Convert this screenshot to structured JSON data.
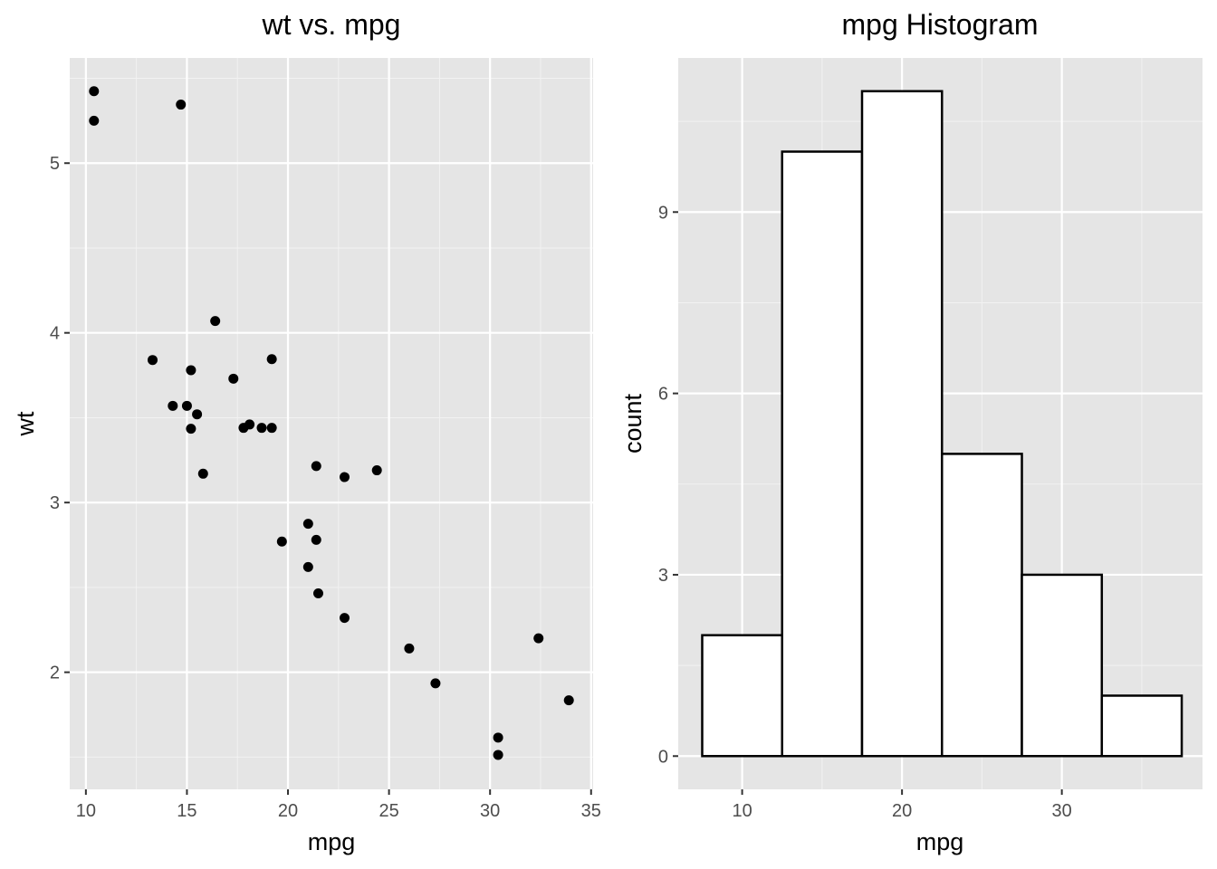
{
  "chart_data": [
    {
      "type": "scatter",
      "title": "wt vs. mpg",
      "xlabel": "mpg",
      "ylabel": "wt",
      "xlim": [
        9.2,
        35.1
      ],
      "ylim": [
        1.31,
        5.62
      ],
      "xticks": [
        10,
        15,
        20,
        25,
        30,
        35
      ],
      "yticks": [
        2,
        3,
        4,
        5
      ],
      "grid": true,
      "point_color": "#000000",
      "panel_background": "#e5e5e5",
      "points": [
        {
          "x": 21.0,
          "y": 2.62
        },
        {
          "x": 21.0,
          "y": 2.875
        },
        {
          "x": 22.8,
          "y": 2.32
        },
        {
          "x": 21.4,
          "y": 3.215
        },
        {
          "x": 18.7,
          "y": 3.44
        },
        {
          "x": 18.1,
          "y": 3.46
        },
        {
          "x": 14.3,
          "y": 3.57
        },
        {
          "x": 24.4,
          "y": 3.19
        },
        {
          "x": 22.8,
          "y": 3.15
        },
        {
          "x": 19.2,
          "y": 3.44
        },
        {
          "x": 17.8,
          "y": 3.44
        },
        {
          "x": 16.4,
          "y": 4.07
        },
        {
          "x": 17.3,
          "y": 3.73
        },
        {
          "x": 15.2,
          "y": 3.78
        },
        {
          "x": 10.4,
          "y": 5.25
        },
        {
          "x": 10.4,
          "y": 5.424
        },
        {
          "x": 14.7,
          "y": 5.345
        },
        {
          "x": 32.4,
          "y": 2.2
        },
        {
          "x": 30.4,
          "y": 1.615
        },
        {
          "x": 33.9,
          "y": 1.835
        },
        {
          "x": 21.5,
          "y": 2.465
        },
        {
          "x": 15.5,
          "y": 3.52
        },
        {
          "x": 15.2,
          "y": 3.435
        },
        {
          "x": 13.3,
          "y": 3.84
        },
        {
          "x": 19.2,
          "y": 3.845
        },
        {
          "x": 27.3,
          "y": 1.935
        },
        {
          "x": 26.0,
          "y": 2.14
        },
        {
          "x": 30.4,
          "y": 1.513
        },
        {
          "x": 15.8,
          "y": 3.17
        },
        {
          "x": 19.7,
          "y": 2.77
        },
        {
          "x": 15.0,
          "y": 3.57
        },
        {
          "x": 21.4,
          "y": 2.78
        }
      ]
    },
    {
      "type": "bar",
      "subtype": "histogram",
      "title": "mpg Histogram",
      "xlabel": "mpg",
      "ylabel": "count",
      "xlim": [
        6.0,
        38.8
      ],
      "ylim": [
        -0.55,
        11.55
      ],
      "xticks": [
        10,
        20,
        30
      ],
      "yticks": [
        0,
        3,
        6,
        9
      ],
      "grid": true,
      "bar_fill": "#ffffff",
      "bar_outline": "#000000",
      "panel_background": "#e5e5e5",
      "bins": [
        {
          "start": 7.5,
          "end": 12.5,
          "count": 2
        },
        {
          "start": 12.5,
          "end": 17.5,
          "count": 10
        },
        {
          "start": 17.5,
          "end": 22.5,
          "count": 11
        },
        {
          "start": 22.5,
          "end": 27.5,
          "count": 5
        },
        {
          "start": 27.5,
          "end": 32.5,
          "count": 3
        },
        {
          "start": 32.5,
          "end": 37.5,
          "count": 1
        }
      ]
    }
  ]
}
